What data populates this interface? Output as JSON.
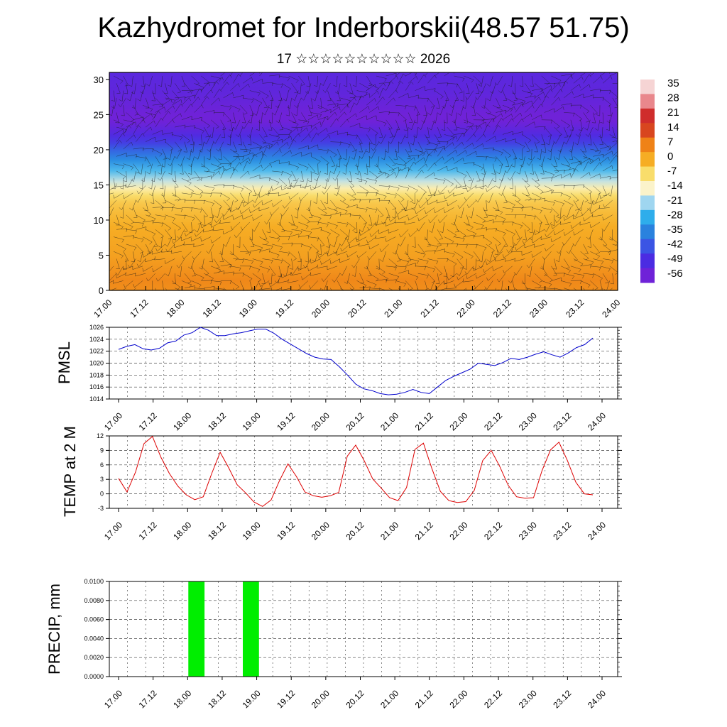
{
  "header": {
    "title": "Kazhydromet for Inderborskii(48.57 51.75)",
    "subtitle": "17 ☆☆☆☆☆☆☆☆☆☆ 2026"
  },
  "chart_data": [
    {
      "type": "heatmap",
      "title": "",
      "xlabel": "",
      "ylabel": "",
      "x_tick_labels": [
        "17.00",
        "17.12",
        "18.00",
        "18.12",
        "19.00",
        "19.12",
        "20.00",
        "20.12",
        "21.00",
        "21.12",
        "22.00",
        "22.12",
        "23.00",
        "23.12",
        "24.00"
      ],
      "y_ticks": [
        0,
        5,
        10,
        15,
        20,
        25,
        30
      ],
      "ylim": [
        0,
        31
      ],
      "colorbar": {
        "labels": [
          "35",
          "28",
          "21",
          "14",
          "7",
          "0",
          "-7",
          "-14",
          "-21",
          "-28",
          "-35",
          "-42",
          "-49",
          "-56"
        ],
        "colors": [
          "#f6d4d4",
          "#e9878c",
          "#cf2d2c",
          "#d8461f",
          "#ef8217",
          "#f6ad24",
          "#f9dd6b",
          "#fbf3ca",
          "#9fd6f0",
          "#2eadeb",
          "#2a82de",
          "#3b55e4",
          "#4b2ce2",
          "#6f22d8"
        ]
      },
      "field_description": {
        "levels": [
          0,
          1.5,
          3,
          5,
          7,
          9,
          11,
          12.5,
          13.5,
          14.5,
          15.5,
          17,
          18.5,
          20,
          21,
          22,
          23,
          24,
          25,
          26,
          28,
          31
        ],
        "values": [
          5,
          6,
          4,
          2,
          1,
          0,
          -2,
          -4,
          -7,
          -12,
          -18,
          -26,
          -33,
          -40,
          -46,
          -50,
          -53,
          -56,
          -57,
          -55,
          -53,
          -52
        ]
      },
      "overlay": "wind barbs"
    },
    {
      "type": "line",
      "ylabel": "PMSL",
      "xlabel": "",
      "x_tick_labels": [
        "17.00",
        "17.12",
        "18.00",
        "18.12",
        "19.00",
        "19.12",
        "20.00",
        "20.12",
        "21.00",
        "21.12",
        "22.00",
        "22.12",
        "23.00",
        "23.12",
        "24.00"
      ],
      "y_tick_labels": [
        "1026",
        "1024",
        "1022",
        "1020",
        "1018",
        "1016",
        "1014"
      ],
      "ylim": [
        1014,
        1026
      ],
      "grid": true,
      "series": [
        {
          "color": "#0000cc",
          "values": [
            1022.3,
            1022.8,
            1023.1,
            1022.4,
            1022.2,
            1022.5,
            1023.4,
            1023.7,
            1024.7,
            1025.1,
            1026.0,
            1025.5,
            1024.6,
            1024.6,
            1024.9,
            1025.1,
            1025.4,
            1025.7,
            1025.7,
            1025.0,
            1024.0,
            1023.2,
            1022.4,
            1021.6,
            1021.0,
            1020.7,
            1020.6,
            1019.4,
            1018.0,
            1016.5,
            1015.7,
            1015.4,
            1014.9,
            1014.7,
            1014.8,
            1015.1,
            1015.6,
            1015.1,
            1014.9,
            1016.0,
            1017.1,
            1017.8,
            1018.4,
            1019.0,
            1020.0,
            1019.8,
            1019.6,
            1020.1,
            1020.8,
            1020.6,
            1021.0,
            1021.5,
            1021.9,
            1021.4,
            1021.0,
            1021.7,
            1022.6,
            1023.1,
            1024.2
          ]
        }
      ]
    },
    {
      "type": "line",
      "ylabel": "TEMP at 2 M",
      "xlabel": "",
      "x_tick_labels": [
        "17.00",
        "17.12",
        "18.00",
        "18.12",
        "19.00",
        "19.12",
        "20.00",
        "20.12",
        "21.00",
        "21.12",
        "22.00",
        "22.12",
        "23.00",
        "23.12",
        "24.00"
      ],
      "y_tick_labels": [
        "12",
        "9",
        "6",
        "3",
        "0",
        "-3"
      ],
      "ylim": [
        -3,
        12
      ],
      "grid": true,
      "series": [
        {
          "color": "#dd0000",
          "values": [
            3.2,
            0.4,
            4.5,
            10.4,
            11.9,
            7.6,
            4.2,
            1.6,
            -0.2,
            -1.2,
            -0.6,
            4.2,
            8.6,
            5.4,
            1.9,
            0.2,
            -1.7,
            -2.6,
            -1.3,
            2.7,
            6.2,
            3.6,
            0.4,
            -0.4,
            -0.7,
            -0.4,
            0.3,
            7.8,
            10.1,
            6.9,
            3.1,
            1.2,
            -0.8,
            -1.4,
            1.3,
            9.2,
            10.5,
            5.2,
            0.5,
            -1.4,
            -1.8,
            -1.6,
            0.7,
            6.9,
            9.0,
            5.7,
            1.8,
            -0.6,
            -0.9,
            -0.8,
            4.8,
            9.1,
            10.7,
            6.9,
            2.4,
            0.0,
            -0.2
          ]
        }
      ]
    },
    {
      "type": "bar",
      "ylabel": "PRECIP, mm",
      "xlabel": "",
      "x_tick_labels": [
        "17.00",
        "17.12",
        "18.00",
        "18.12",
        "19.00",
        "19.12",
        "20.00",
        "20.12",
        "21.00",
        "21.12",
        "22.00",
        "22.12",
        "23.00",
        "23.12",
        "24.00"
      ],
      "y_tick_labels": [
        "0.0100",
        "0.0080",
        "0.0060",
        "0.0040",
        "0.0020",
        "0.0000"
      ],
      "ylim": [
        0,
        0.01
      ],
      "grid": true,
      "bar_color": "#00ee00",
      "bars": [
        {
          "x_start_h": 24.0,
          "x_end_h": 27.0,
          "value": 0.01
        },
        {
          "x_start_h": 42.0,
          "x_end_h": 45.0,
          "value": 0.01
        }
      ]
    }
  ]
}
